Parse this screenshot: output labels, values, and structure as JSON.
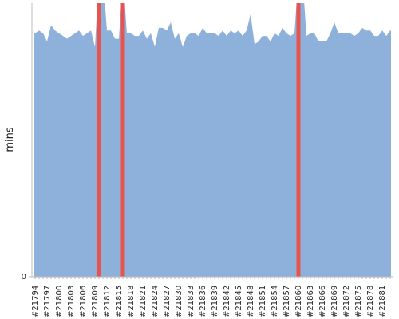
{
  "chart_data": {
    "type": "area",
    "y_label": "mins",
    "categories": [
      "#21794",
      null,
      null,
      "#21797",
      null,
      null,
      "#21800",
      null,
      null,
      "#21803",
      null,
      null,
      "#21806",
      null,
      null,
      "#21809",
      null,
      null,
      "#21812",
      null,
      null,
      "#21815",
      null,
      null,
      "#21818",
      null,
      null,
      "#21821",
      null,
      null,
      "#21824",
      null,
      null,
      "#21827",
      null,
      null,
      "#21830",
      null,
      null,
      "#21833",
      null,
      null,
      "#21836",
      null,
      null,
      "#21839",
      null,
      null,
      "#21842",
      null,
      null,
      "#21845",
      null,
      null,
      "#21848",
      null,
      null,
      "#21851",
      null,
      null,
      "#21854",
      null,
      null,
      "#21857",
      null,
      null,
      "#21860",
      null,
      null,
      "#21863",
      null,
      null,
      "#21866",
      null,
      null,
      "#21869",
      null,
      null,
      "#21872",
      null,
      null,
      "#21875",
      null,
      null,
      "#21878",
      null,
      null,
      "#21881",
      null,
      null
    ],
    "series": [
      {
        "type": "area",
        "color": "#8eb1db",
        "values": [
          89,
          90,
          89,
          86,
          92,
          90,
          89,
          88,
          87,
          88,
          89,
          90,
          88,
          89,
          90,
          84,
          110,
          110,
          90,
          90,
          87,
          87,
          110,
          89,
          89,
          88,
          88,
          90,
          87,
          89,
          84,
          91,
          91,
          90,
          93,
          87,
          89,
          84,
          88,
          89,
          89,
          88,
          91,
          89,
          89,
          89,
          88,
          90,
          88,
          90,
          89,
          90,
          88,
          90,
          96,
          85,
          86,
          88,
          88,
          86,
          89,
          88,
          91,
          89,
          88,
          89,
          110,
          110,
          88,
          89,
          89,
          86,
          86,
          86,
          89,
          93,
          89,
          89,
          89,
          89,
          88,
          89,
          91,
          90,
          90,
          88,
          88,
          90,
          88,
          90
        ]
      },
      {
        "type": "bar",
        "color": "#e8524f",
        "values": [
          null,
          null,
          null,
          null,
          null,
          null,
          null,
          null,
          null,
          null,
          null,
          null,
          null,
          null,
          null,
          null,
          110,
          null,
          null,
          null,
          null,
          null,
          110,
          null,
          null,
          null,
          null,
          null,
          null,
          null,
          null,
          null,
          null,
          null,
          null,
          null,
          null,
          null,
          null,
          null,
          null,
          null,
          null,
          null,
          null,
          null,
          null,
          null,
          null,
          null,
          null,
          null,
          null,
          null,
          null,
          null,
          null,
          null,
          null,
          null,
          null,
          null,
          null,
          null,
          null,
          null,
          110,
          null,
          null,
          null,
          null,
          null,
          null,
          null,
          null,
          null,
          null,
          null,
          null,
          null,
          null,
          null,
          null,
          null,
          null,
          null,
          null,
          null,
          null,
          null
        ]
      }
    ],
    "ylim": [
      0,
      100
    ],
    "yticks": [
      0
    ]
  }
}
